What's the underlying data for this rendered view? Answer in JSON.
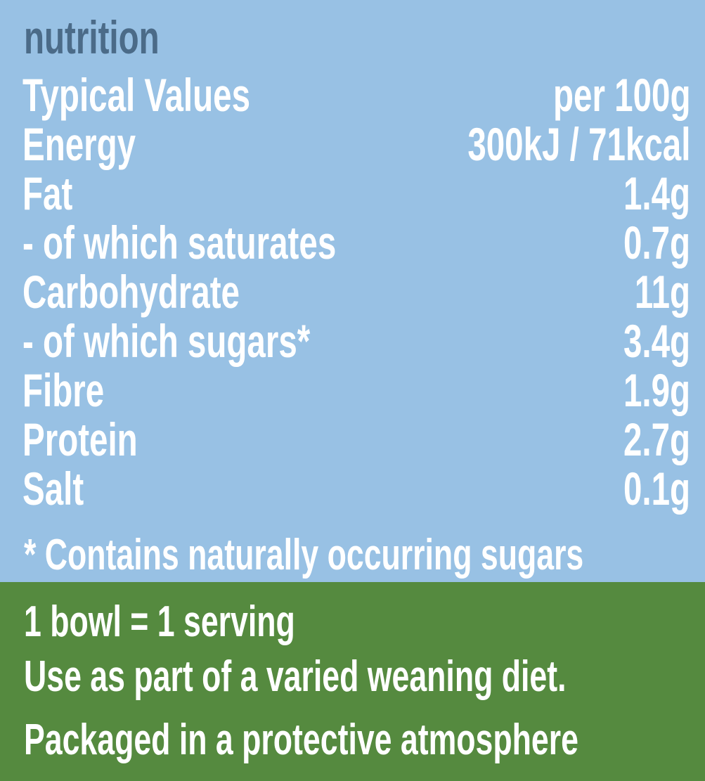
{
  "heading": "nutrition",
  "header_row": {
    "label": "Typical Values",
    "value": "per 100g"
  },
  "rows": [
    {
      "label": "Energy",
      "value": "300kJ / 71kcal"
    },
    {
      "label": "Fat",
      "value": "1.4g"
    },
    {
      "label": "- of which saturates",
      "value": "0.7g"
    },
    {
      "label": "Carbohydrate",
      "value": "11g"
    },
    {
      "label": "- of which sugars*",
      "value": "3.4g"
    },
    {
      "label": "Fibre",
      "value": "1.9g"
    },
    {
      "label": "Protein",
      "value": "2.7g"
    },
    {
      "label": "Salt",
      "value": "0.1g"
    }
  ],
  "footnote": "* Contains naturally occurring sugars",
  "notes": [
    "1 bowl = 1 serving",
    "Use as part of a varied weaning diet.",
    "Packaged in a protective atmosphere"
  ],
  "colors": {
    "panel_blue": "#98c1e4",
    "panel_green": "#558a3f",
    "heading": "#4b6b88",
    "text": "#ffffff"
  }
}
